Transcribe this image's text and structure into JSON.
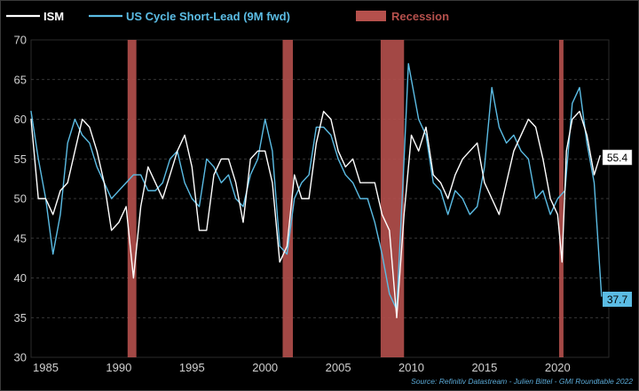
{
  "chart_data": {
    "type": "line",
    "title": "",
    "xlabel": "",
    "ylabel": "",
    "xlim": [
      1984,
      2023.5
    ],
    "ylim": [
      30,
      70
    ],
    "xticks": [
      1985,
      1990,
      1995,
      2000,
      2005,
      2010,
      2015,
      2020
    ],
    "yticks": [
      30,
      35,
      40,
      45,
      50,
      55,
      60,
      65,
      70
    ],
    "grid": "horizontal-dashed",
    "legend": {
      "position": "top-left",
      "entries": [
        {
          "label": "ISM",
          "color": "#ffffff",
          "kind": "line"
        },
        {
          "label": "US Cycle Short-Lead (9M fwd)",
          "color": "#5bbce4",
          "kind": "line"
        },
        {
          "label": "Recession",
          "color": "#b5504c",
          "kind": "band"
        }
      ]
    },
    "recessions": [
      [
        1990.6,
        1991.2
      ],
      [
        2001.2,
        2001.9
      ],
      [
        2007.9,
        2009.5
      ],
      [
        2020.1,
        2020.4
      ]
    ],
    "series": [
      {
        "name": "ISM",
        "color": "#ffffff",
        "end_label": "55.4",
        "x": [
          1984.0,
          1984.5,
          1985.0,
          1985.5,
          1986.0,
          1986.5,
          1987.0,
          1987.5,
          1988.0,
          1988.5,
          1989.0,
          1989.5,
          1990.0,
          1990.5,
          1991.0,
          1991.5,
          1992.0,
          1992.5,
          1993.0,
          1993.5,
          1994.0,
          1994.5,
          1995.0,
          1995.5,
          1996.0,
          1996.5,
          1997.0,
          1997.5,
          1998.0,
          1998.5,
          1999.0,
          1999.5,
          2000.0,
          2000.5,
          2001.0,
          2001.5,
          2002.0,
          2002.5,
          2003.0,
          2003.5,
          2004.0,
          2004.5,
          2005.0,
          2005.5,
          2006.0,
          2006.5,
          2007.0,
          2007.5,
          2008.0,
          2008.5,
          2009.0,
          2009.5,
          2010.0,
          2010.5,
          2011.0,
          2011.5,
          2012.0,
          2012.5,
          2013.0,
          2013.5,
          2014.0,
          2014.5,
          2015.0,
          2015.5,
          2016.0,
          2016.5,
          2017.0,
          2017.5,
          2018.0,
          2018.5,
          2019.0,
          2019.5,
          2020.0,
          2020.3,
          2020.6,
          2021.0,
          2021.5,
          2022.0,
          2022.5,
          2022.9
        ],
        "values": [
          60,
          50,
          50,
          48,
          51,
          52,
          56,
          60,
          59,
          56,
          52,
          46,
          47,
          49,
          40,
          49,
          54,
          52,
          50,
          53,
          56,
          58,
          54,
          46,
          46,
          53,
          55,
          55,
          52,
          47,
          55,
          56,
          56,
          52,
          42,
          44,
          53,
          50,
          50,
          57,
          61,
          60,
          56,
          54,
          55,
          52,
          52,
          52,
          48,
          46,
          35,
          48,
          58,
          56,
          59,
          53,
          52,
          50,
          53,
          55,
          56,
          57,
          52,
          50,
          48,
          52,
          56,
          58,
          60,
          59,
          55,
          50,
          48,
          42,
          56,
          60,
          61,
          58,
          53,
          55.4
        ]
      },
      {
        "name": "US Cycle Short-Lead (9M fwd)",
        "color": "#5bbce4",
        "end_label": "37.7",
        "x": [
          1984.0,
          1984.5,
          1985.0,
          1985.5,
          1986.0,
          1986.5,
          1987.0,
          1987.5,
          1988.0,
          1988.5,
          1989.0,
          1989.5,
          1990.0,
          1990.5,
          1991.0,
          1991.5,
          1992.0,
          1992.5,
          1993.0,
          1993.5,
          1994.0,
          1994.5,
          1995.0,
          1995.5,
          1996.0,
          1996.5,
          1997.0,
          1997.5,
          1998.0,
          1998.5,
          1999.0,
          1999.5,
          2000.0,
          2000.5,
          2001.0,
          2001.5,
          2002.0,
          2002.5,
          2003.0,
          2003.5,
          2004.0,
          2004.5,
          2005.0,
          2005.5,
          2006.0,
          2006.5,
          2007.0,
          2007.5,
          2008.0,
          2008.5,
          2009.0,
          2009.5,
          2009.8,
          2010.5,
          2011.0,
          2011.5,
          2012.0,
          2012.5,
          2013.0,
          2013.5,
          2014.0,
          2014.5,
          2015.0,
          2015.5,
          2016.0,
          2016.5,
          2017.0,
          2017.5,
          2018.0,
          2018.5,
          2019.0,
          2019.5,
          2020.0,
          2020.5,
          2021.0,
          2021.5,
          2022.0,
          2022.5,
          2023.0
        ],
        "values": [
          61,
          55,
          50,
          43,
          48,
          57,
          60,
          58,
          57,
          54,
          52,
          50,
          51,
          52,
          53,
          53,
          51,
          51,
          52,
          55,
          56,
          52,
          50,
          49,
          55,
          54,
          52,
          53,
          50,
          49,
          53,
          55,
          60,
          56,
          44,
          43,
          50,
          52,
          53,
          59,
          59,
          58,
          55,
          53,
          52,
          50,
          50,
          47,
          43,
          38,
          36,
          55,
          67,
          60,
          58,
          52,
          51,
          48,
          51,
          50,
          48,
          49,
          54,
          64,
          59,
          57,
          58,
          56,
          55,
          50,
          51,
          48,
          50,
          51,
          62,
          64,
          57,
          52,
          37.7
        ]
      }
    ],
    "source": "Source: Refinitiv Datastream - Julien Bittel - GMI Roundtable 2022"
  }
}
